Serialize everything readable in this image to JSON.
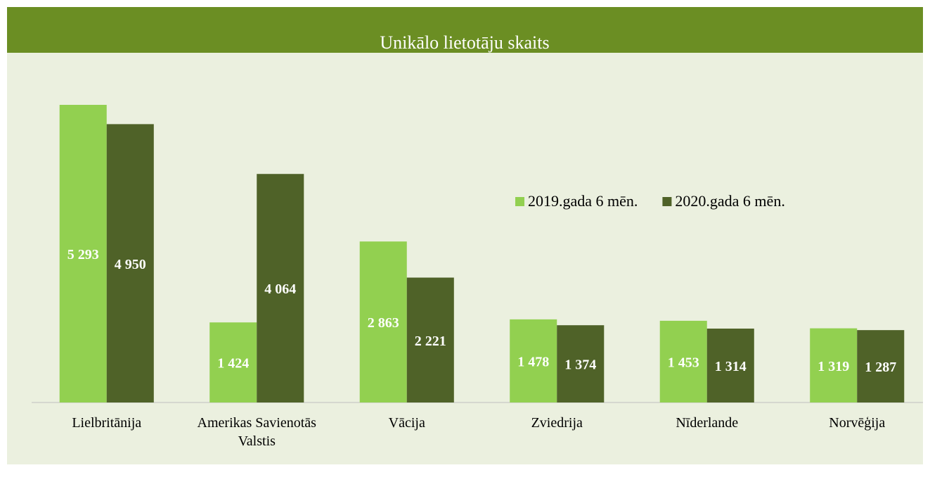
{
  "chart_data": {
    "type": "bar",
    "title": "Unikālo lietotāju skaits",
    "categories": [
      "Lielbritānija",
      "Amerikas Savienotās Valstis",
      "Vācija",
      "Zviedrija",
      "Nīderlande",
      "Norvēģija"
    ],
    "series": [
      {
        "name": "2019.gada 6 mēn.",
        "color": "#92d050",
        "values": [
          5293,
          1424,
          2863,
          1478,
          1453,
          1319
        ],
        "value_labels": [
          "5 293",
          "1 424",
          "2 863",
          "1 478",
          "1 453",
          "1 319"
        ]
      },
      {
        "name": "2020.gada 6 mēn.",
        "color": "#4f6228",
        "values": [
          4950,
          4064,
          2221,
          1374,
          1314,
          1287
        ],
        "value_labels": [
          "4 950",
          "4 064",
          "2 221",
          "1 374",
          "1 314",
          "1 287"
        ]
      }
    ]
  }
}
